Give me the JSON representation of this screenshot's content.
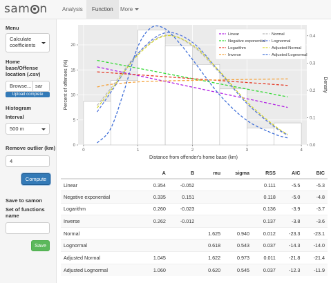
{
  "navbar": {
    "brand_prefix": "sam",
    "brand_suffix": "n",
    "tabs": [
      {
        "label": "Analysis"
      },
      {
        "label": "Function"
      },
      {
        "label": "More"
      }
    ],
    "active_tab": "Function"
  },
  "sidebar": {
    "menu_label": "Menu",
    "menu_value_line1": "Calculate",
    "menu_value_line2": "coefficients",
    "upload_label_line1": "Home",
    "upload_label_line2": "base/Offense",
    "upload_label_line3": "location (.csv)",
    "browse_label": "Browse...",
    "file_name": "sar",
    "upload_status": "Upload complete",
    "upload_progress": 1.0,
    "histogram_label": "Histogram",
    "interval_label": "Interval",
    "interval_value": "500 m",
    "outlier_label": "Remove outlier (km)",
    "outlier_value": "4",
    "compute_label": "Compute",
    "save_heading": "Save to samon",
    "set_name_line1": "Set of functions",
    "set_name_line2": "name",
    "set_name_value": "",
    "save_label": "Save"
  },
  "chart_data": {
    "type": "bar",
    "xlabel": "Distance from offender's home base (km)",
    "ylabel": "Percent of offenses (%)",
    "y2label": "Density",
    "xlim": [
      -0.1,
      4.1
    ],
    "ylim": [
      0,
      24
    ],
    "y2lim": [
      0,
      0.44
    ],
    "xticks": [
      "0",
      "1",
      "2",
      "3",
      "4"
    ],
    "yticks": [
      "0",
      "5",
      "10",
      "15",
      "20"
    ],
    "y2ticks": [
      "0.0",
      "0.1",
      "0.2",
      "0.3",
      "0.4"
    ],
    "histogram": {
      "bins": [
        [
          0,
          0.5
        ],
        [
          0.5,
          1.0
        ],
        [
          1.0,
          1.5
        ],
        [
          1.5,
          2.0
        ],
        [
          2.0,
          2.5
        ],
        [
          2.5,
          3.0
        ],
        [
          3.0,
          3.5
        ],
        [
          3.5,
          4.0
        ]
      ],
      "percent": [
        8.7,
        12.9,
        23.0,
        19.8,
        16.1,
        11.2,
        3.4,
        4.4
      ]
    },
    "legend_position": "top-right",
    "series": [
      {
        "name": "Linear",
        "color": "#b11ee4",
        "x": [
          0.25,
          3.75
        ],
        "y": [
          15.6,
          7.5
        ]
      },
      {
        "name": "Negative exponential",
        "color": "#32d932",
        "x": [
          0.25,
          3.75
        ],
        "y": [
          16.9,
          9.6
        ]
      },
      {
        "name": "Logarithm",
        "color": "#e63a26",
        "x": [
          0.25,
          3.75
        ],
        "y": [
          14.6,
          11.9
        ]
      },
      {
        "name": "Inverse",
        "color": "#f5a23a",
        "x": [
          0.25,
          0.5,
          1.0,
          1.5,
          2.0,
          3.0,
          3.75
        ],
        "y": [
          11.6,
          12.1,
          12.6,
          12.8,
          12.9,
          13.1,
          13.2
        ]
      },
      {
        "name": "Normal",
        "color": "#b7b7b7",
        "x": [
          0.25,
          0.5,
          1.0,
          1.5,
          2.0,
          2.5,
          3.0,
          3.5,
          3.75
        ],
        "y": [
          7.9,
          11.3,
          18.3,
          21.9,
          19.8,
          14.4,
          8.3,
          3.6,
          1.9
        ]
      },
      {
        "name": "Lognormal",
        "color": "#5577dd",
        "x": [
          0.25,
          0.5,
          1.0,
          1.5,
          2.0,
          2.5,
          3.0,
          3.5,
          3.75
        ],
        "y": [
          6.6,
          10.5,
          18.3,
          22.4,
          20.5,
          14.6,
          8.3,
          3.7,
          2.0
        ]
      },
      {
        "name": "Adjusted Normal",
        "color": "#d6d62a",
        "x": [
          0.25,
          0.5,
          1.0,
          1.5,
          2.0,
          2.5,
          3.0,
          3.5,
          3.75
        ],
        "y": [
          7.4,
          10.9,
          18.0,
          21.8,
          20.0,
          14.7,
          8.6,
          3.9,
          2.1
        ]
      },
      {
        "name": "Adjusted Lognormal",
        "color": "#3f6fd8",
        "x": [
          0.25,
          0.5,
          0.75,
          1.0,
          1.25,
          1.5,
          1.75,
          2.0,
          2.5,
          3.0,
          3.5,
          3.75
        ],
        "y": [
          0.4,
          3.3,
          11.0,
          19.7,
          23.5,
          23.2,
          20.5,
          17.1,
          10.0,
          4.9,
          2.2,
          1.4
        ]
      }
    ]
  },
  "table": {
    "headers": [
      "",
      "A",
      "B",
      "mu",
      "sigma",
      "RSS",
      "AIC",
      "BIC"
    ],
    "rows": [
      [
        "Linear",
        "0.354",
        "-0.052",
        "",
        "",
        "0.111",
        "-5.5",
        "-5.3"
      ],
      [
        "Negative exponential",
        "0.335",
        "0.151",
        "",
        "",
        "0.118",
        "-5.0",
        "-4.8"
      ],
      [
        "Logarithm",
        "0.260",
        "-0.023",
        "",
        "",
        "0.136",
        "-3.9",
        "-3.7"
      ],
      [
        "Inverse",
        "0.262",
        "-0.012",
        "",
        "",
        "0.137",
        "-3.8",
        "-3.6"
      ],
      [
        "Normal",
        "",
        "",
        "1.625",
        "0.940",
        "0.012",
        "-23.3",
        "-23.1"
      ],
      [
        "Lognormal",
        "",
        "",
        "0.618",
        "0.543",
        "0.037",
        "-14.3",
        "-14.0"
      ],
      [
        "Adjusted Normal",
        "1.045",
        "",
        "1.622",
        "0.973",
        "0.011",
        "-21.8",
        "-21.4"
      ],
      [
        "Adjusted Lognormal",
        "1.060",
        "",
        "0.620",
        "0.545",
        "0.037",
        "-12.3",
        "-11.9"
      ]
    ]
  }
}
